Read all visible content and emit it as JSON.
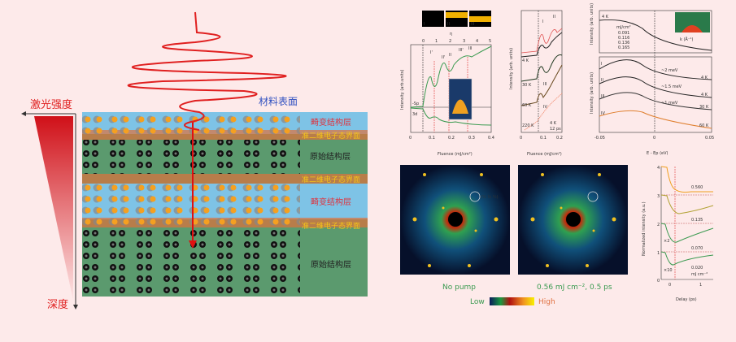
{
  "left": {
    "laser_intensity": "激光强度",
    "depth": "深度",
    "surface": "材料表面",
    "layers": [
      {
        "label": "畸变结构层",
        "color": "#e0303a"
      },
      {
        "label": "准二维电子态界面",
        "color": "#f5c518"
      },
      {
        "label": "原始结构层",
        "color": "#222222"
      },
      {
        "label": "准二维电子态界面",
        "color": "#f5c518"
      },
      {
        "label": "畸变结构层",
        "color": "#e0303a"
      },
      {
        "label": "准二维电子态界面",
        "color": "#f5c518"
      },
      {
        "label": "原始结构层",
        "color": "#222222"
      }
    ]
  },
  "panel_a": {
    "heatmap_labels": [
      "I",
      "II",
      "III"
    ],
    "top_axis_label": "η",
    "top_ticks": [
      "0",
      "1",
      "2",
      "3",
      "4",
      "5"
    ],
    "x_ticks": [
      "0",
      "0.1",
      "0.2",
      "0.3",
      "0.4"
    ],
    "xlabel": "Fluence (mJ/cm²)",
    "ylabel": "Intensity (arb.units)",
    "markers": [
      "I'",
      "II'",
      "II",
      "III'",
      "III"
    ],
    "series": [
      "-Sp",
      "3d"
    ]
  },
  "panel_b": {
    "ylabel": "Intensity (arb. units)",
    "xlabel": "Fluence (mJ/cm²)",
    "x_ticks": [
      "0",
      "0.1",
      "0.2"
    ],
    "temps": [
      "4 K",
      "30 K",
      "60 K",
      "220 K"
    ],
    "markers": [
      "I",
      "II",
      "III",
      "IV"
    ],
    "note": [
      "4 K",
      "12 ps"
    ]
  },
  "panel_c": {
    "ylabel_top": "Intensity (arb. units)",
    "ylabel_bottom": "Intensity (arb. units)",
    "xlabel": "E - Ep (eV)",
    "x_ticks": [
      "-0.05",
      "0",
      "0.05"
    ],
    "temp_top": "4 K",
    "legend_title": "mJ/cm²",
    "legend": [
      "0.091",
      "0.116",
      "0.136",
      "0.165"
    ],
    "inset_xlabel": "k (Å⁻¹)",
    "inset_xticks": [
      "-0.1",
      "0",
      "0.1"
    ],
    "inset_yticks": [
      "0",
      "-0.05",
      "-0.10"
    ],
    "curves": [
      {
        "label": "I",
        "gap": "~2 meV",
        "temp": "4 K"
      },
      {
        "label": "II",
        "gap": "~1.5 meV",
        "temp": "4 K"
      },
      {
        "label": "III",
        "gap": "~1 meV",
        "temp": "30 K"
      },
      {
        "label": "IV",
        "gap": "",
        "temp": "60 K"
      }
    ]
  },
  "diffraction": {
    "left_caption": "No pump",
    "right_caption": "0.56 mJ cm⁻², 0.5 ps",
    "index_label": "(½ ½ ½)",
    "colorbar_low": "Low",
    "colorbar_high": "High"
  },
  "delay_plot": {
    "ylabel": "Normalized intensity (a.u.)",
    "xlabel": "Delay (ps)",
    "y_ticks": [
      "0",
      "1",
      "2",
      "3",
      "4"
    ],
    "x_ticks": [
      "0",
      "1"
    ],
    "fluences": [
      "0.560",
      "0.135",
      "0.070",
      "0.020"
    ],
    "unit": "mJ cm⁻²",
    "scales": [
      "×2",
      "×10"
    ]
  }
}
